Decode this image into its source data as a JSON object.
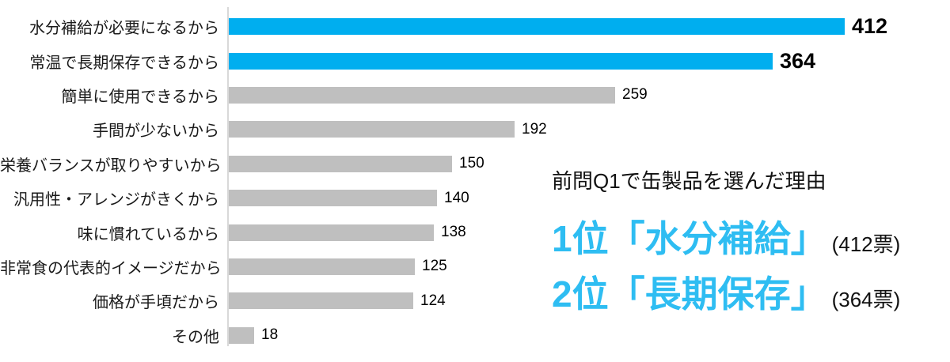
{
  "chart_data": {
    "type": "bar",
    "orientation": "horizontal",
    "title": "前問Q1で缶製品を選んだ理由",
    "xlabel": "",
    "ylabel": "",
    "xlim": [
      0,
      435
    ],
    "grid": false,
    "legend": false,
    "value_suffix": "票",
    "categories": [
      "水分補給が必要になるから",
      "常温で長期保存できるから",
      "簡単に使用できるから",
      "手間が少ないから",
      "栄養バランスが取りやすいから",
      "汎用性・アレンジがきくから",
      "味に慣れているから",
      "非常食の代表的イメージだから",
      "価格が手頃だから",
      "その他"
    ],
    "values": [
      412,
      364,
      259,
      192,
      150,
      140,
      138,
      125,
      124,
      18
    ],
    "highlighted_indices": [
      0,
      1
    ],
    "bar_color": "#bfbfbf",
    "highlight_color": "#00aeef",
    "axis_line_color": "#d9d9d9"
  },
  "annotation": {
    "title": "前問Q1で缶製品を選んだ理由",
    "rank1": {
      "text": "1位「水分補給」",
      "votes": "(412票)"
    },
    "rank2": {
      "text": "2位「長期保存」",
      "votes": "(364票)"
    },
    "accent_color": "#2ebdf2"
  }
}
